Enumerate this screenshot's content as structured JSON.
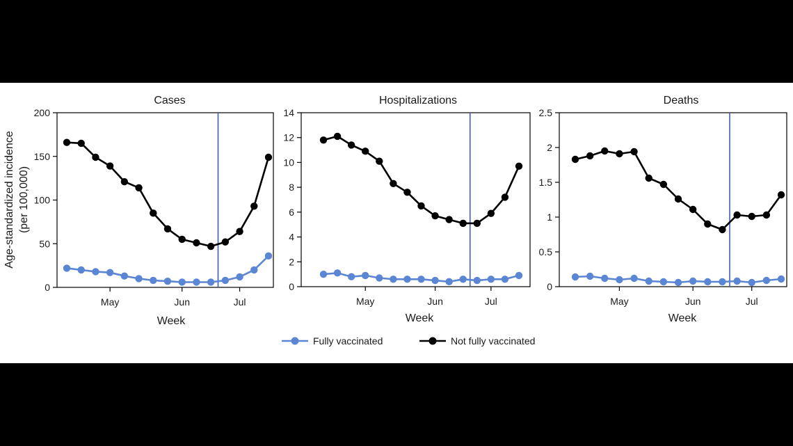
{
  "colors": {
    "fully": "#5b86d4",
    "not_fully": "#000000",
    "marker": "#3a5fb0",
    "background": "#ffffff",
    "page": "#000000"
  },
  "y_axis_label": [
    "Age-standardized incidence",
    "(per 100,000)"
  ],
  "legend": [
    {
      "name": "Fully vaccinated",
      "color": "#5b86d4"
    },
    {
      "name": "Not fully vaccinated",
      "color": "#000000"
    }
  ],
  "chart_data": [
    {
      "type": "line",
      "title": "Cases",
      "xlabel": "Week",
      "ylabel": "Age-standardized incidence (per 100,000)",
      "x_ticks": [
        "May",
        "Jun",
        "Jul"
      ],
      "x_tick_weeks": [
        4,
        9,
        13
      ],
      "ylim": [
        0,
        200
      ],
      "y_ticks": [
        "0",
        "50",
        "100",
        "150",
        "200"
      ],
      "y_tick_values": [
        0,
        50,
        100,
        150,
        200
      ],
      "weeks": [
        1,
        2,
        3,
        4,
        5,
        6,
        7,
        8,
        9,
        10,
        11,
        12,
        13,
        14,
        15
      ],
      "marker_week": 11.5,
      "series": [
        {
          "name": "Fully vaccinated",
          "values": [
            22,
            20,
            18,
            17,
            13,
            10,
            8,
            7,
            6,
            6,
            6,
            8,
            12,
            20,
            36
          ]
        },
        {
          "name": "Not fully vaccinated",
          "values": [
            166,
            165,
            149,
            139,
            121,
            114,
            85,
            67,
            55,
            51,
            47,
            52,
            64,
            93,
            149
          ]
        }
      ]
    },
    {
      "type": "line",
      "title": "Hospitalizations",
      "xlabel": "Week",
      "ylabel": "Age-standardized incidence (per 100,000)",
      "x_ticks": [
        "May",
        "Jun",
        "Jul"
      ],
      "x_tick_weeks": [
        4,
        9,
        13
      ],
      "ylim": [
        0,
        14
      ],
      "y_ticks": [
        "0",
        "2",
        "4",
        "6",
        "8",
        "10",
        "12",
        "14"
      ],
      "y_tick_values": [
        0,
        2,
        4,
        6,
        8,
        10,
        12,
        14
      ],
      "weeks": [
        1,
        2,
        3,
        4,
        5,
        6,
        7,
        8,
        9,
        10,
        11,
        12,
        13,
        14,
        15
      ],
      "marker_week": 11.5,
      "series": [
        {
          "name": "Fully vaccinated",
          "values": [
            1.0,
            1.1,
            0.8,
            0.9,
            0.7,
            0.6,
            0.6,
            0.6,
            0.5,
            0.4,
            0.6,
            0.5,
            0.6,
            0.6,
            0.9
          ]
        },
        {
          "name": "Not fully vaccinated",
          "values": [
            11.8,
            12.1,
            11.4,
            10.9,
            10.1,
            8.3,
            7.6,
            6.5,
            5.7,
            5.4,
            5.1,
            5.1,
            5.9,
            7.2,
            9.7
          ]
        }
      ]
    },
    {
      "type": "line",
      "title": "Deaths",
      "xlabel": "Week",
      "ylabel": "Age-standardized incidence (per 100,000)",
      "x_ticks": [
        "May",
        "Jun",
        "Jul"
      ],
      "x_tick_weeks": [
        4,
        9,
        13
      ],
      "ylim": [
        0,
        2.5
      ],
      "y_ticks": [
        "0",
        "0.5",
        "1",
        "1.5",
        "2",
        "2.5"
      ],
      "y_tick_values": [
        0,
        0.5,
        1,
        1.5,
        2,
        2.5
      ],
      "weeks": [
        1,
        2,
        3,
        4,
        5,
        6,
        7,
        8,
        9,
        10,
        11,
        12,
        13,
        14,
        15
      ],
      "marker_week": 11.5,
      "series": [
        {
          "name": "Fully vaccinated",
          "values": [
            0.14,
            0.15,
            0.12,
            0.1,
            0.12,
            0.08,
            0.07,
            0.06,
            0.08,
            0.07,
            0.07,
            0.08,
            0.06,
            0.09,
            0.11
          ]
        },
        {
          "name": "Not fully vaccinated",
          "values": [
            1.83,
            1.88,
            1.95,
            1.91,
            1.94,
            1.56,
            1.47,
            1.26,
            1.11,
            0.9,
            0.82,
            1.03,
            1.01,
            1.03,
            1.32
          ]
        }
      ]
    }
  ]
}
